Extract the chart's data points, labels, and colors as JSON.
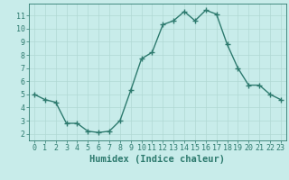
{
  "x": [
    0,
    1,
    2,
    3,
    4,
    5,
    6,
    7,
    8,
    9,
    10,
    11,
    12,
    13,
    14,
    15,
    16,
    17,
    18,
    19,
    20,
    21,
    22,
    23
  ],
  "y": [
    5.0,
    4.6,
    4.4,
    2.8,
    2.8,
    2.2,
    2.1,
    2.2,
    3.0,
    5.3,
    7.7,
    8.2,
    10.3,
    10.6,
    11.3,
    10.6,
    11.4,
    11.1,
    8.8,
    7.0,
    5.7,
    5.7,
    5.0,
    4.6
  ],
  "line_color": "#2d7a6e",
  "marker": "+",
  "marker_size": 4,
  "marker_edge_width": 1.0,
  "background_color": "#c8ecea",
  "grid_color": "#b0d8d4",
  "xlabel": "Humidex (Indice chaleur)",
  "xlabel_fontsize": 7.5,
  "xlim": [
    -0.5,
    23.5
  ],
  "ylim": [
    1.5,
    11.9
  ],
  "yticks": [
    2,
    3,
    4,
    5,
    6,
    7,
    8,
    9,
    10,
    11
  ],
  "xtick_labels": [
    "0",
    "1",
    "2",
    "3",
    "4",
    "5",
    "6",
    "7",
    "8",
    "9",
    "10",
    "11",
    "12",
    "13",
    "14",
    "15",
    "16",
    "17",
    "18",
    "19",
    "20",
    "21",
    "22",
    "23"
  ],
  "tick_color": "#2d7a6e",
  "tick_fontsize": 6.0,
  "line_width": 1.0
}
